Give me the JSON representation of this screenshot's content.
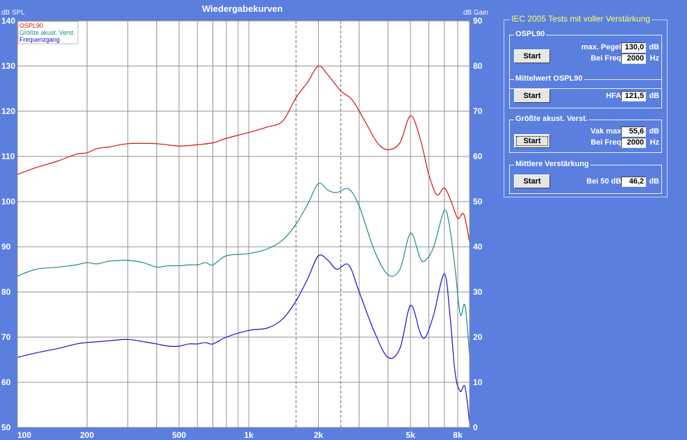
{
  "chart_data": {
    "type": "line",
    "title": "Wiedergabekurven",
    "ylabel": "dB SPL",
    "y2label": "dB Gain",
    "xscale": "log",
    "xlim": [
      100,
      9000
    ],
    "ylim": [
      50,
      140
    ],
    "y2lim": [
      0,
      90
    ],
    "yticks": [
      50,
      60,
      70,
      80,
      90,
      100,
      110,
      120,
      130,
      140
    ],
    "y2ticks": [
      0,
      10,
      20,
      30,
      40,
      50,
      60,
      70,
      80,
      90
    ],
    "xtick_values": [
      100,
      200,
      500,
      1000,
      2000,
      5000,
      8000
    ],
    "xtick_labels": [
      "100",
      "200",
      "500",
      "1k",
      "2k",
      "5k",
      "8k"
    ],
    "dashed_x": [
      1600,
      2500
    ],
    "grid": true,
    "legend_position": "top-left",
    "series": [
      {
        "name": "OSPL90",
        "axis": "left",
        "color": "#d01010",
        "x": [
          100,
          120,
          150,
          180,
          200,
          220,
          250,
          300,
          400,
          500,
          600,
          700,
          800,
          1000,
          1200,
          1400,
          1600,
          1800,
          2000,
          2200,
          2500,
          2800,
          3200,
          3600,
          4000,
          4500,
          5000,
          5500,
          6000,
          6500,
          7000,
          7500,
          8000,
          8500,
          9000
        ],
        "y": [
          106,
          107.5,
          109,
          110.5,
          110.8,
          111.7,
          112.1,
          112.8,
          112.8,
          112.3,
          112.6,
          113,
          114,
          115.3,
          116.5,
          117.8,
          123,
          126.5,
          130,
          128,
          124.5,
          122.5,
          117.5,
          113,
          111.5,
          113,
          119,
          114,
          106,
          101.5,
          103,
          100,
          96.3,
          97.2,
          91
        ]
      },
      {
        "name": "Größte akust. Verst.",
        "axis": "right",
        "color": "#1a8a8a",
        "x": [
          100,
          120,
          150,
          180,
          200,
          220,
          250,
          300,
          350,
          400,
          450,
          500,
          550,
          600,
          650,
          700,
          800,
          1000,
          1200,
          1400,
          1600,
          1800,
          2000,
          2200,
          2400,
          2700,
          3000,
          3500,
          4000,
          4500,
          5000,
          5500,
          5800,
          6300,
          7000,
          7400,
          7800,
          8200,
          8600,
          9000
        ],
        "y": [
          33.5,
          35,
          35.5,
          36,
          36.5,
          36.2,
          36.8,
          37,
          36.5,
          35.5,
          35.8,
          35.8,
          36,
          36,
          36.5,
          36,
          38,
          38.5,
          39.5,
          41.5,
          45,
          49.5,
          54,
          52.5,
          52,
          52.8,
          49,
          39,
          33.8,
          35,
          43,
          37.5,
          37,
          40,
          48,
          44,
          35,
          25,
          27,
          16
        ]
      },
      {
        "name": "Frequenzgang",
        "axis": "right",
        "color": "#1010c8",
        "x": [
          100,
          120,
          150,
          180,
          200,
          250,
          300,
          350,
          400,
          450,
          500,
          550,
          600,
          650,
          700,
          800,
          1000,
          1200,
          1400,
          1600,
          1800,
          2000,
          2200,
          2400,
          2700,
          3000,
          3500,
          4000,
          4500,
          5000,
          5500,
          5800,
          6300,
          7000,
          7400,
          7800,
          8200,
          8600,
          9000
        ],
        "y": [
          15.5,
          16.5,
          17.5,
          18.5,
          18.8,
          19.2,
          19.5,
          19,
          18.5,
          18,
          18,
          18.5,
          18.5,
          18.8,
          18.5,
          20,
          21.5,
          22,
          24,
          28,
          33,
          38,
          37,
          35,
          36,
          30,
          21,
          15.5,
          17.5,
          27,
          21,
          20,
          25,
          34,
          25,
          12,
          8,
          9,
          1
        ]
      }
    ]
  },
  "panel": {
    "title": "IEC 2005 Tests mit voller Verstärkung",
    "groups": [
      {
        "title": "OSPL90",
        "button": "Start",
        "rows": [
          {
            "label": "max. Pegel:",
            "value": "130,0",
            "unit": "dB"
          },
          {
            "label": "Bei Freq:",
            "value": "2000",
            "unit": "Hz"
          }
        ]
      },
      {
        "title": "Mittelwert OSPL90",
        "button": "Start",
        "rows": [
          {
            "label": "HFA:",
            "value": "121,5",
            "unit": "dB"
          }
        ]
      },
      {
        "title": "Größte akust. Verst.",
        "button": "Start",
        "rows": [
          {
            "label": "Vak max:",
            "value": "55,6",
            "unit": "dB"
          },
          {
            "label": "Bei Freq:",
            "value": "2000",
            "unit": "Hz"
          }
        ]
      },
      {
        "title": "Mittlere Verstärkung",
        "button": "Start",
        "rows": [
          {
            "label": "Bei 50 dB:",
            "value": "46,2",
            "unit": "dB"
          }
        ]
      }
    ]
  }
}
